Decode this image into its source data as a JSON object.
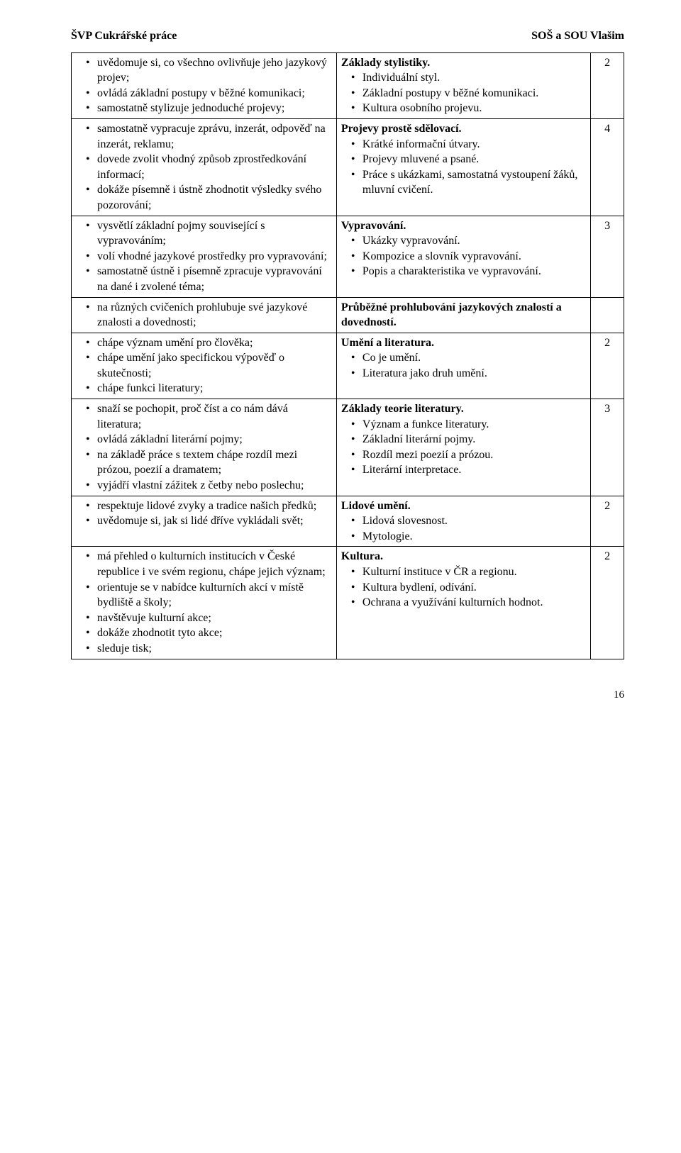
{
  "header": {
    "left": "ŠVP Cukrářské práce",
    "right": "SOŠ a SOU Vlašim"
  },
  "leftBlocks": [
    {
      "items": [
        "uvědomuje si, co všechno ovlivňuje jeho jazykový projev;",
        "ovládá základní postupy v běžné komunikaci;",
        "samostatně stylizuje jednoduché projevy;"
      ]
    },
    {
      "items": [
        "samostatně vypracuje zprávu, inzerát, odpověď na inzerát, reklamu;",
        "dovede zvolit vhodný způsob zprostředkování informací;",
        "dokáže písemně i ústně zhodnotit výsledky svého pozorování;"
      ]
    },
    {
      "items": [
        "vysvětlí základní pojmy související s vypravováním;",
        "volí vhodné jazykové prostředky pro vypravování;",
        "samostatně ústně i písemně zpracuje vypravování na dané i zvolené téma;"
      ]
    },
    {
      "items": [
        "na různých cvičeních prohlubuje své jazykové znalosti a dovednosti;"
      ]
    },
    {
      "items": [
        "chápe význam umění pro člověka;",
        "chápe umění jako specifickou výpověď o skutečnosti;",
        "chápe funkci literatury;"
      ]
    },
    {
      "items": [
        "snaží se pochopit, proč číst a co nám dává literatura;",
        "ovládá základní literární pojmy;",
        "na základě práce s textem chápe rozdíl mezi prózou, poezií a dramatem;",
        "vyjádří vlastní zážitek z četby nebo poslechu;"
      ]
    },
    {
      "items": [
        "respektuje lidové zvyky a tradice našich předků;",
        "uvědomuje si, jak si lidé dříve vykládali svět;"
      ]
    },
    {
      "items": [
        "má přehled o kulturních institucích v České republice i ve svém regionu, chápe jejich význam;",
        "orientuje se v nabídce kulturních akcí v místě bydliště a školy;",
        "navštěvuje kulturní akce;",
        "dokáže zhodnotit tyto akce;",
        "sleduje tisk;"
      ]
    }
  ],
  "rightBlocks": [
    {
      "title": "Základy stylistiky.",
      "hours": "2",
      "items": [
        "Individuální styl.",
        "Základní postupy v běžné komunikaci.",
        "Kultura osobního projevu."
      ]
    },
    {
      "title": "Projevy prostě sdělovací.",
      "hours": "4",
      "items": [
        "Krátké informační útvary.",
        "Projevy mluvené a psané.",
        "Práce s ukázkami, samostatná vystoupení žáků, mluvní cvičení."
      ]
    },
    {
      "title": "Vypravování.",
      "hours": "3",
      "items": [
        "Ukázky vypravování.",
        "Kompozice a slovník vypravování.",
        "Popis a charakteristika ve vypravování."
      ]
    },
    {
      "title": "Průběžné prohlubování jazykových znalostí a dovedností.",
      "hours": "",
      "items": []
    },
    {
      "title": "Umění a literatura.",
      "hours": "2",
      "items": [
        "Co je umění.",
        "Literatura jako druh umění."
      ]
    },
    {
      "title": "Základy teorie literatury.",
      "hours": "3",
      "items": [
        "Význam a funkce literatury.",
        "Základní literární pojmy.",
        "Rozdíl mezi poezií a prózou.",
        "Literární interpretace."
      ]
    },
    {
      "title": "Lidové umění.",
      "hours": "2",
      "items": [
        "Lidová slovesnost.",
        "Mytologie."
      ]
    },
    {
      "title": "Kultura.",
      "hours": "2",
      "items": [
        "Kulturní instituce v ČR a regionu.",
        "Kultura bydlení, odívání.",
        "Ochrana a využívání kulturních hodnot."
      ]
    }
  ],
  "pageNumber": "16"
}
